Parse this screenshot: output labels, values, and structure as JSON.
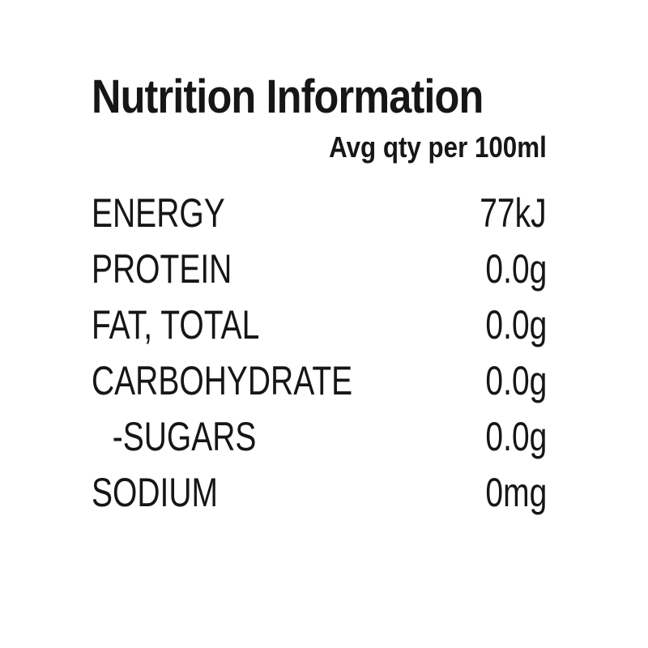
{
  "label": {
    "title": "Nutrition Information",
    "subtitle": "Avg qty per 100ml",
    "rows": [
      {
        "name": "ENERGY",
        "value": "77kJ",
        "indent": false
      },
      {
        "name": "PROTEIN",
        "value": "0.0g",
        "indent": false
      },
      {
        "name": "FAT, TOTAL",
        "value": "0.0g",
        "indent": false
      },
      {
        "name": "CARBOHYDRATE",
        "value": "0.0g",
        "indent": false
      },
      {
        "name": "-SUGARS",
        "value": "0.0g",
        "indent": true
      },
      {
        "name": "SODIUM",
        "value": "0mg",
        "indent": false
      }
    ],
    "colors": {
      "text": "#161616",
      "background": "#ffffff"
    }
  }
}
